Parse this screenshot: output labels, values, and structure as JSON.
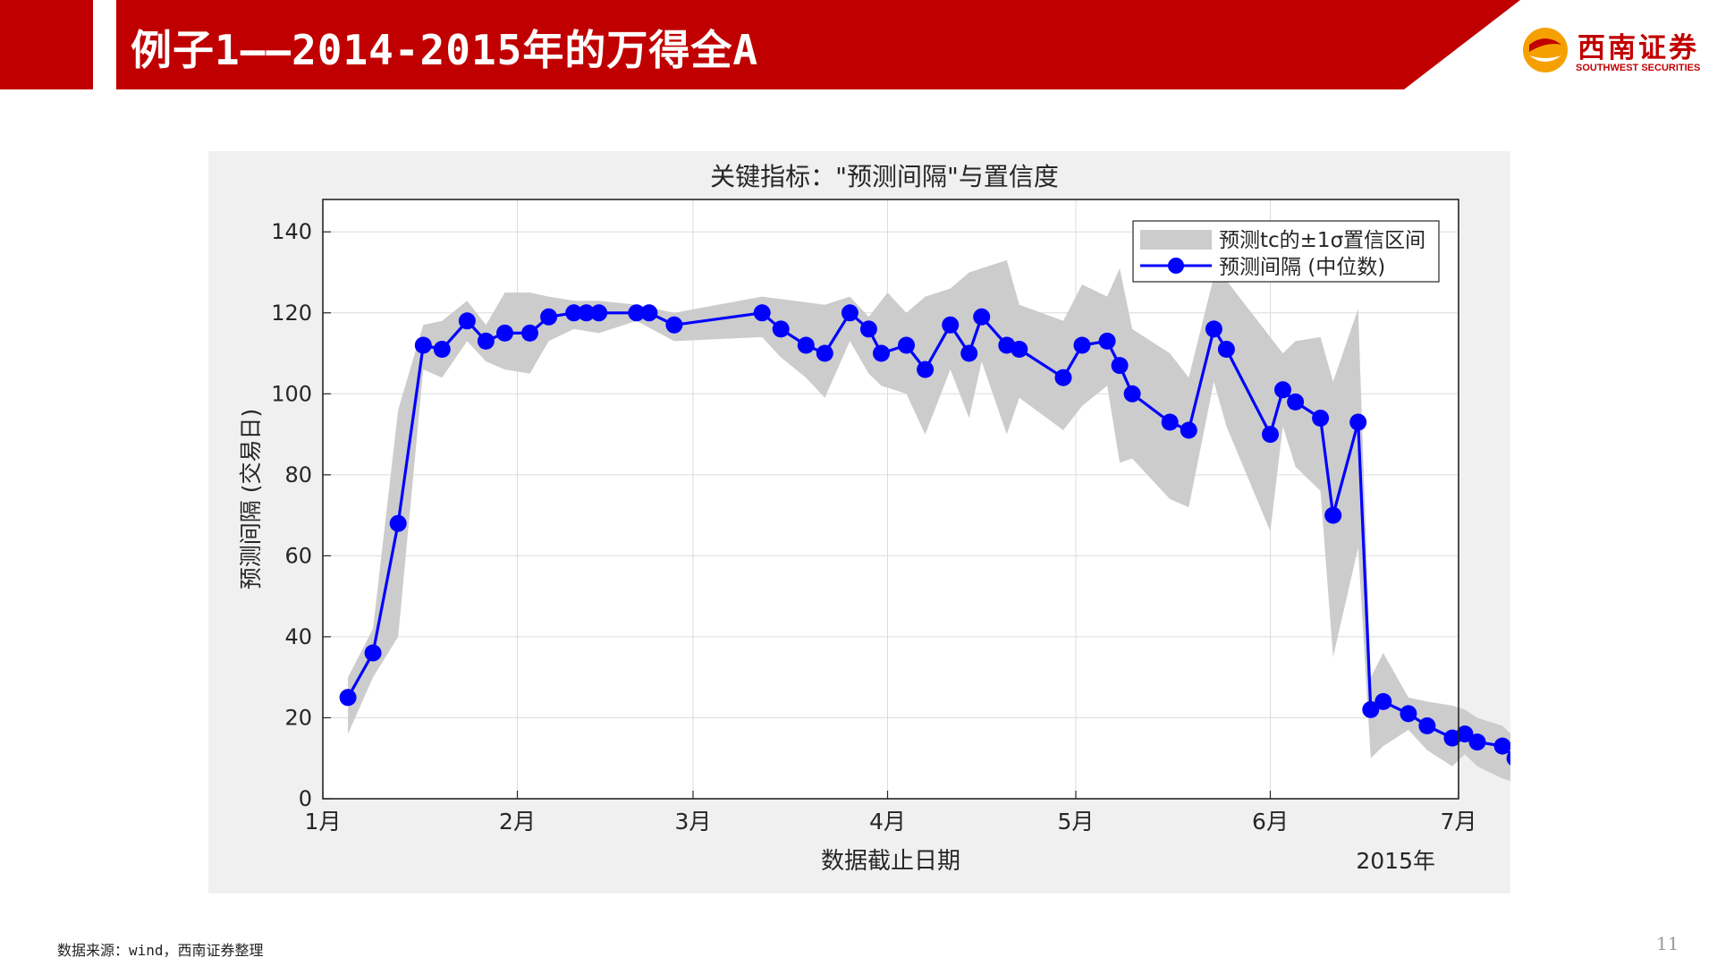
{
  "slide": {
    "title": "例子1——2014-2015年的万得全A",
    "logo_text": "西南证券",
    "logo_sub": "SOUTHWEST SECURITIES",
    "source_note": "数据来源：wind，西南证券整理",
    "page_number": "11"
  },
  "colors": {
    "brand_red": "#c00000",
    "series_line": "#0000ff",
    "band_fill": "#cccccc",
    "panel_bg": "#f0f0f0"
  },
  "chart_data": {
    "type": "line",
    "title": "关键指标：\"预测间隔\"与置信度",
    "xlabel": "数据截止日期",
    "ylabel": "预测间隔 (交易日)",
    "x_secondary_label": "2015年",
    "x_ticks": [
      {
        "label": "1月",
        "day": 0
      },
      {
        "label": "2月",
        "day": 31
      },
      {
        "label": "3月",
        "day": 59
      },
      {
        "label": "4月",
        "day": 90
      },
      {
        "label": "5月",
        "day": 120
      },
      {
        "label": "6月",
        "day": 151
      },
      {
        "label": "7月",
        "day": 181
      }
    ],
    "xlim_days": [
      0,
      181
    ],
    "ylim": [
      0,
      148
    ],
    "y_ticks": [
      0,
      20,
      40,
      60,
      80,
      100,
      120,
      140
    ],
    "grid": true,
    "legend_position": "top-right",
    "series": [
      {
        "name": "预测间隔 (中位数)",
        "style": "line-with-markers",
        "points": [
          {
            "date": "2015-01-05",
            "y": 25
          },
          {
            "date": "2015-01-09",
            "y": 36
          },
          {
            "date": "2015-01-13",
            "y": 68
          },
          {
            "date": "2015-01-17",
            "y": 112
          },
          {
            "date": "2015-01-20",
            "y": 111
          },
          {
            "date": "2015-01-24",
            "y": 118
          },
          {
            "date": "2015-01-27",
            "y": 113
          },
          {
            "date": "2015-01-30",
            "y": 115
          },
          {
            "date": "2015-02-03",
            "y": 115
          },
          {
            "date": "2015-02-06",
            "y": 119
          },
          {
            "date": "2015-02-10",
            "y": 120
          },
          {
            "date": "2015-02-12",
            "y": 120
          },
          {
            "date": "2015-02-14",
            "y": 120
          },
          {
            "date": "2015-02-20",
            "y": 120
          },
          {
            "date": "2015-02-22",
            "y": 120
          },
          {
            "date": "2015-02-26",
            "y": 117
          },
          {
            "date": "2015-03-12",
            "y": 120
          },
          {
            "date": "2015-03-15",
            "y": 116
          },
          {
            "date": "2015-03-19",
            "y": 112
          },
          {
            "date": "2015-03-22",
            "y": 110
          },
          {
            "date": "2015-03-26",
            "y": 120
          },
          {
            "date": "2015-03-29",
            "y": 116
          },
          {
            "date": "2015-03-31",
            "y": 110
          },
          {
            "date": "2015-04-04",
            "y": 112
          },
          {
            "date": "2015-04-07",
            "y": 106
          },
          {
            "date": "2015-04-11",
            "y": 117
          },
          {
            "date": "2015-04-14",
            "y": 110
          },
          {
            "date": "2015-04-16",
            "y": 119
          },
          {
            "date": "2015-04-20",
            "y": 112
          },
          {
            "date": "2015-04-22",
            "y": 111
          },
          {
            "date": "2015-04-29",
            "y": 104
          },
          {
            "date": "2015-05-02",
            "y": 112
          },
          {
            "date": "2015-05-06",
            "y": 113
          },
          {
            "date": "2015-05-08",
            "y": 107
          },
          {
            "date": "2015-05-10",
            "y": 100
          },
          {
            "date": "2015-05-16",
            "y": 93
          },
          {
            "date": "2015-05-19",
            "y": 91
          },
          {
            "date": "2015-05-23",
            "y": 116
          },
          {
            "date": "2015-05-25",
            "y": 111
          },
          {
            "date": "2015-06-01",
            "y": 90
          },
          {
            "date": "2015-06-03",
            "y": 101
          },
          {
            "date": "2015-06-05",
            "y": 98
          },
          {
            "date": "2015-06-09",
            "y": 94
          },
          {
            "date": "2015-06-11",
            "y": 70
          },
          {
            "date": "2015-06-15",
            "y": 93
          },
          {
            "date": "2015-06-17",
            "y": 22
          },
          {
            "date": "2015-06-19",
            "y": 24
          },
          {
            "date": "2015-06-23",
            "y": 21
          },
          {
            "date": "2015-06-26",
            "y": 18
          },
          {
            "date": "2015-06-30",
            "y": 15
          },
          {
            "date": "2015-07-02",
            "y": 16
          },
          {
            "date": "2015-07-04",
            "y": 14
          },
          {
            "date": "2015-07-08",
            "y": 13
          },
          {
            "date": "2015-07-10",
            "y": 10
          }
        ]
      },
      {
        "name": "预测tc的±1σ置信区间",
        "style": "band",
        "upper": [
          {
            "date": "2015-01-05",
            "y": 30
          },
          {
            "date": "2015-01-09",
            "y": 42
          },
          {
            "date": "2015-01-13",
            "y": 96
          },
          {
            "date": "2015-01-17",
            "y": 117
          },
          {
            "date": "2015-01-20",
            "y": 118
          },
          {
            "date": "2015-01-24",
            "y": 123
          },
          {
            "date": "2015-01-27",
            "y": 117
          },
          {
            "date": "2015-01-30",
            "y": 125
          },
          {
            "date": "2015-02-03",
            "y": 125
          },
          {
            "date": "2015-02-06",
            "y": 124
          },
          {
            "date": "2015-02-10",
            "y": 123
          },
          {
            "date": "2015-02-14",
            "y": 123
          },
          {
            "date": "2015-02-20",
            "y": 122
          },
          {
            "date": "2015-02-26",
            "y": 120
          },
          {
            "date": "2015-03-12",
            "y": 124
          },
          {
            "date": "2015-03-22",
            "y": 122
          },
          {
            "date": "2015-03-26",
            "y": 124
          },
          {
            "date": "2015-03-29",
            "y": 119
          },
          {
            "date": "2015-04-01",
            "y": 125
          },
          {
            "date": "2015-04-04",
            "y": 120
          },
          {
            "date": "2015-04-07",
            "y": 124
          },
          {
            "date": "2015-04-11",
            "y": 126
          },
          {
            "date": "2015-04-14",
            "y": 130
          },
          {
            "date": "2015-04-20",
            "y": 133
          },
          {
            "date": "2015-04-22",
            "y": 122
          },
          {
            "date": "2015-04-29",
            "y": 118
          },
          {
            "date": "2015-05-02",
            "y": 127
          },
          {
            "date": "2015-05-06",
            "y": 124
          },
          {
            "date": "2015-05-08",
            "y": 131
          },
          {
            "date": "2015-05-10",
            "y": 116
          },
          {
            "date": "2015-05-16",
            "y": 110
          },
          {
            "date": "2015-05-19",
            "y": 104
          },
          {
            "date": "2015-05-23",
            "y": 129
          },
          {
            "date": "2015-05-25",
            "y": 128
          },
          {
            "date": "2015-06-01",
            "y": 114
          },
          {
            "date": "2015-06-03",
            "y": 110
          },
          {
            "date": "2015-06-05",
            "y": 113
          },
          {
            "date": "2015-06-09",
            "y": 114
          },
          {
            "date": "2015-06-11",
            "y": 103
          },
          {
            "date": "2015-06-15",
            "y": 121
          },
          {
            "date": "2015-06-17",
            "y": 30
          },
          {
            "date": "2015-06-19",
            "y": 36
          },
          {
            "date": "2015-06-23",
            "y": 25
          },
          {
            "date": "2015-06-26",
            "y": 24
          },
          {
            "date": "2015-06-30",
            "y": 23
          },
          {
            "date": "2015-07-02",
            "y": 22
          },
          {
            "date": "2015-07-04",
            "y": 20
          },
          {
            "date": "2015-07-08",
            "y": 18
          },
          {
            "date": "2015-07-10",
            "y": 15
          }
        ],
        "lower": [
          {
            "date": "2015-01-05",
            "y": 16
          },
          {
            "date": "2015-01-09",
            "y": 30
          },
          {
            "date": "2015-01-13",
            "y": 40
          },
          {
            "date": "2015-01-17",
            "y": 106
          },
          {
            "date": "2015-01-20",
            "y": 104
          },
          {
            "date": "2015-01-24",
            "y": 113
          },
          {
            "date": "2015-01-27",
            "y": 108
          },
          {
            "date": "2015-01-30",
            "y": 106
          },
          {
            "date": "2015-02-03",
            "y": 105
          },
          {
            "date": "2015-02-06",
            "y": 113
          },
          {
            "date": "2015-02-10",
            "y": 116
          },
          {
            "date": "2015-02-14",
            "y": 115
          },
          {
            "date": "2015-02-20",
            "y": 118
          },
          {
            "date": "2015-02-26",
            "y": 113
          },
          {
            "date": "2015-03-12",
            "y": 114
          },
          {
            "date": "2015-03-15",
            "y": 109
          },
          {
            "date": "2015-03-19",
            "y": 104
          },
          {
            "date": "2015-03-22",
            "y": 99
          },
          {
            "date": "2015-03-26",
            "y": 113
          },
          {
            "date": "2015-03-29",
            "y": 105
          },
          {
            "date": "2015-03-31",
            "y": 102
          },
          {
            "date": "2015-04-04",
            "y": 100
          },
          {
            "date": "2015-04-07",
            "y": 90
          },
          {
            "date": "2015-04-11",
            "y": 106
          },
          {
            "date": "2015-04-14",
            "y": 94
          },
          {
            "date": "2015-04-16",
            "y": 108
          },
          {
            "date": "2015-04-20",
            "y": 90
          },
          {
            "date": "2015-04-22",
            "y": 99
          },
          {
            "date": "2015-04-29",
            "y": 91
          },
          {
            "date": "2015-05-02",
            "y": 97
          },
          {
            "date": "2015-05-06",
            "y": 102
          },
          {
            "date": "2015-05-08",
            "y": 83
          },
          {
            "date": "2015-05-10",
            "y": 84
          },
          {
            "date": "2015-05-16",
            "y": 74
          },
          {
            "date": "2015-05-19",
            "y": 72
          },
          {
            "date": "2015-05-23",
            "y": 103
          },
          {
            "date": "2015-05-25",
            "y": 92
          },
          {
            "date": "2015-06-01",
            "y": 66
          },
          {
            "date": "2015-06-03",
            "y": 92
          },
          {
            "date": "2015-06-05",
            "y": 82
          },
          {
            "date": "2015-06-09",
            "y": 76
          },
          {
            "date": "2015-06-11",
            "y": 35
          },
          {
            "date": "2015-06-15",
            "y": 62
          },
          {
            "date": "2015-06-17",
            "y": 10
          },
          {
            "date": "2015-06-19",
            "y": 13
          },
          {
            "date": "2015-06-23",
            "y": 17
          },
          {
            "date": "2015-06-26",
            "y": 12
          },
          {
            "date": "2015-06-30",
            "y": 8
          },
          {
            "date": "2015-07-02",
            "y": 11
          },
          {
            "date": "2015-07-04",
            "y": 8
          },
          {
            "date": "2015-07-08",
            "y": 5
          },
          {
            "date": "2015-07-10",
            "y": 4
          }
        ]
      }
    ]
  }
}
